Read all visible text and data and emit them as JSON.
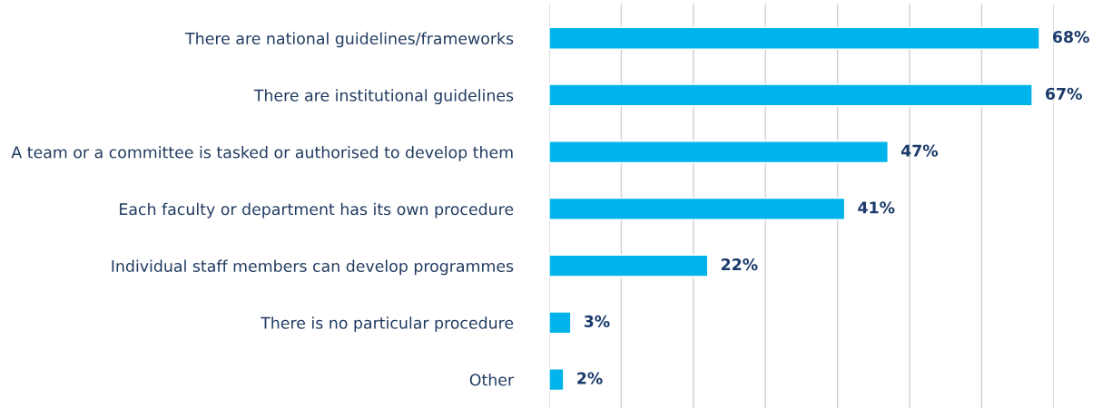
{
  "chart_data": {
    "type": "bar",
    "orientation": "horizontal",
    "categories": [
      "There are national guidelines/frameworks",
      "There are institutional guidelines",
      "A team or a committee is tasked or authorised to develop them",
      "Each faculty or department has its own procedure",
      "Individual staff members can develop programmes",
      "There is no particular procedure",
      "Other"
    ],
    "values": [
      68,
      67,
      47,
      41,
      22,
      3,
      2
    ],
    "value_labels": [
      "68%",
      "67%",
      "47%",
      "41%",
      "22%",
      "3%",
      "2%"
    ],
    "color": "#00b4eb",
    "xlim": [
      0,
      70
    ],
    "xticks": [
      {
        "value": 0,
        "label": null
      },
      {
        "value": 10,
        "label": null
      },
      {
        "value": 20,
        "label": null
      },
      {
        "value": 30,
        "label": null
      },
      {
        "value": 40,
        "label": null
      },
      {
        "value": 50,
        "label": null
      },
      {
        "value": 60,
        "label": null
      },
      {
        "value": 70,
        "label": null
      }
    ],
    "grid": "x",
    "tick_labels": "y"
  }
}
